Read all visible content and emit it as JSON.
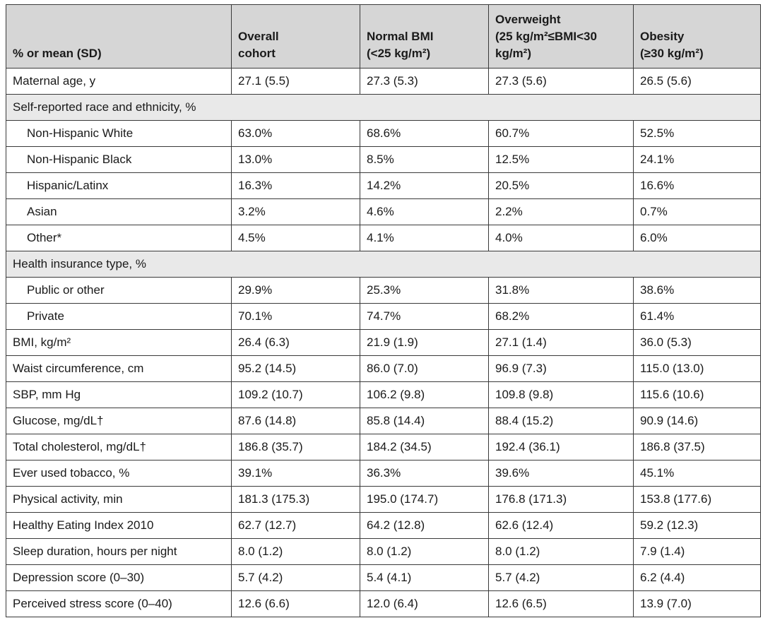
{
  "header": {
    "label_col": "% or mean (SD)",
    "overall": [
      "Overall",
      "cohort"
    ],
    "normal": [
      "Normal BMI",
      "(<25 kg/m²)"
    ],
    "overweight": [
      "Overweight",
      "(25 kg/m²≤BMI<30",
      "kg/m²)"
    ],
    "obesity": [
      "Obesity",
      "(≥30 kg/m²)"
    ]
  },
  "rows": [
    {
      "label": "Maternal age, y",
      "overall": "27.1 (5.5)",
      "normal": "27.3 (5.3)",
      "overweight": "27.3 (5.6)",
      "obesity": "26.5 (5.6)"
    },
    {
      "label": "Self-reported race and ethnicity, %"
    },
    {
      "label": "Non-Hispanic White",
      "overall": "63.0%",
      "normal": "68.6%",
      "overweight": "60.7%",
      "obesity": "52.5%"
    },
    {
      "label": "Non-Hispanic Black",
      "overall": "13.0%",
      "normal": "8.5%",
      "overweight": "12.5%",
      "obesity": "24.1%"
    },
    {
      "label": "Hispanic/Latinx",
      "overall": "16.3%",
      "normal": "14.2%",
      "overweight": "20.5%",
      "obesity": "16.6%"
    },
    {
      "label": "Asian",
      "overall": "3.2%",
      "normal": "4.6%",
      "overweight": "2.2%",
      "obesity": "0.7%"
    },
    {
      "label": "Other*",
      "overall": "4.5%",
      "normal": "4.1%",
      "overweight": "4.0%",
      "obesity": "6.0%"
    },
    {
      "label": "Health insurance type, %"
    },
    {
      "label": "Public or other",
      "overall": "29.9%",
      "normal": "25.3%",
      "overweight": "31.8%",
      "obesity": "38.6%"
    },
    {
      "label": "Private",
      "overall": "70.1%",
      "normal": "74.7%",
      "overweight": "68.2%",
      "obesity": "61.4%"
    },
    {
      "label": "BMI, kg/m²",
      "overall": "26.4 (6.3)",
      "normal": "21.9 (1.9)",
      "overweight": "27.1 (1.4)",
      "obesity": "36.0 (5.3)"
    },
    {
      "label": "Waist circumference, cm",
      "overall": "95.2 (14.5)",
      "normal": "86.0 (7.0)",
      "overweight": "96.9 (7.3)",
      "obesity": "115.0 (13.0)"
    },
    {
      "label": "SBP, mm Hg",
      "overall": "109.2 (10.7)",
      "normal": "106.2 (9.8)",
      "overweight": "109.8 (9.8)",
      "obesity": "115.6 (10.6)"
    },
    {
      "label": "Glucose, mg/dL†",
      "overall": "87.6 (14.8)",
      "normal": "85.8 (14.4)",
      "overweight": "88.4 (15.2)",
      "obesity": "90.9 (14.6)"
    },
    {
      "label": "Total cholesterol, mg/dL†",
      "overall": "186.8 (35.7)",
      "normal": "184.2 (34.5)",
      "overweight": "192.4 (36.1)",
      "obesity": "186.8 (37.5)"
    },
    {
      "label": "Ever used tobacco, %",
      "overall": "39.1%",
      "normal": "36.3%",
      "overweight": "39.6%",
      "obesity": "45.1%"
    },
    {
      "label": "Physical activity, min",
      "overall": "181.3 (175.3)",
      "normal": "195.0 (174.7)",
      "overweight": "176.8 (171.3)",
      "obesity": "153.8 (177.6)"
    },
    {
      "label": "Healthy Eating Index 2010",
      "overall": "62.7 (12.7)",
      "normal": "64.2 (12.8)",
      "overweight": "62.6 (12.4)",
      "obesity": "59.2 (12.3)"
    },
    {
      "label": "Sleep duration, hours per night",
      "overall": "8.0 (1.2)",
      "normal": "8.0 (1.2)",
      "overweight": "8.0 (1.2)",
      "obesity": "7.9 (1.4)"
    },
    {
      "label": "Depression score (0–30)",
      "overall": "5.7 (4.2)",
      "normal": "5.4 (4.1)",
      "overweight": "5.7 (4.2)",
      "obesity": "6.2 (4.4)"
    },
    {
      "label": "Perceived stress score (0–40)",
      "overall": "12.6 (6.6)",
      "normal": "12.0 (6.4)",
      "overweight": "12.6 (6.5)",
      "obesity": "13.9 (7.0)"
    }
  ]
}
